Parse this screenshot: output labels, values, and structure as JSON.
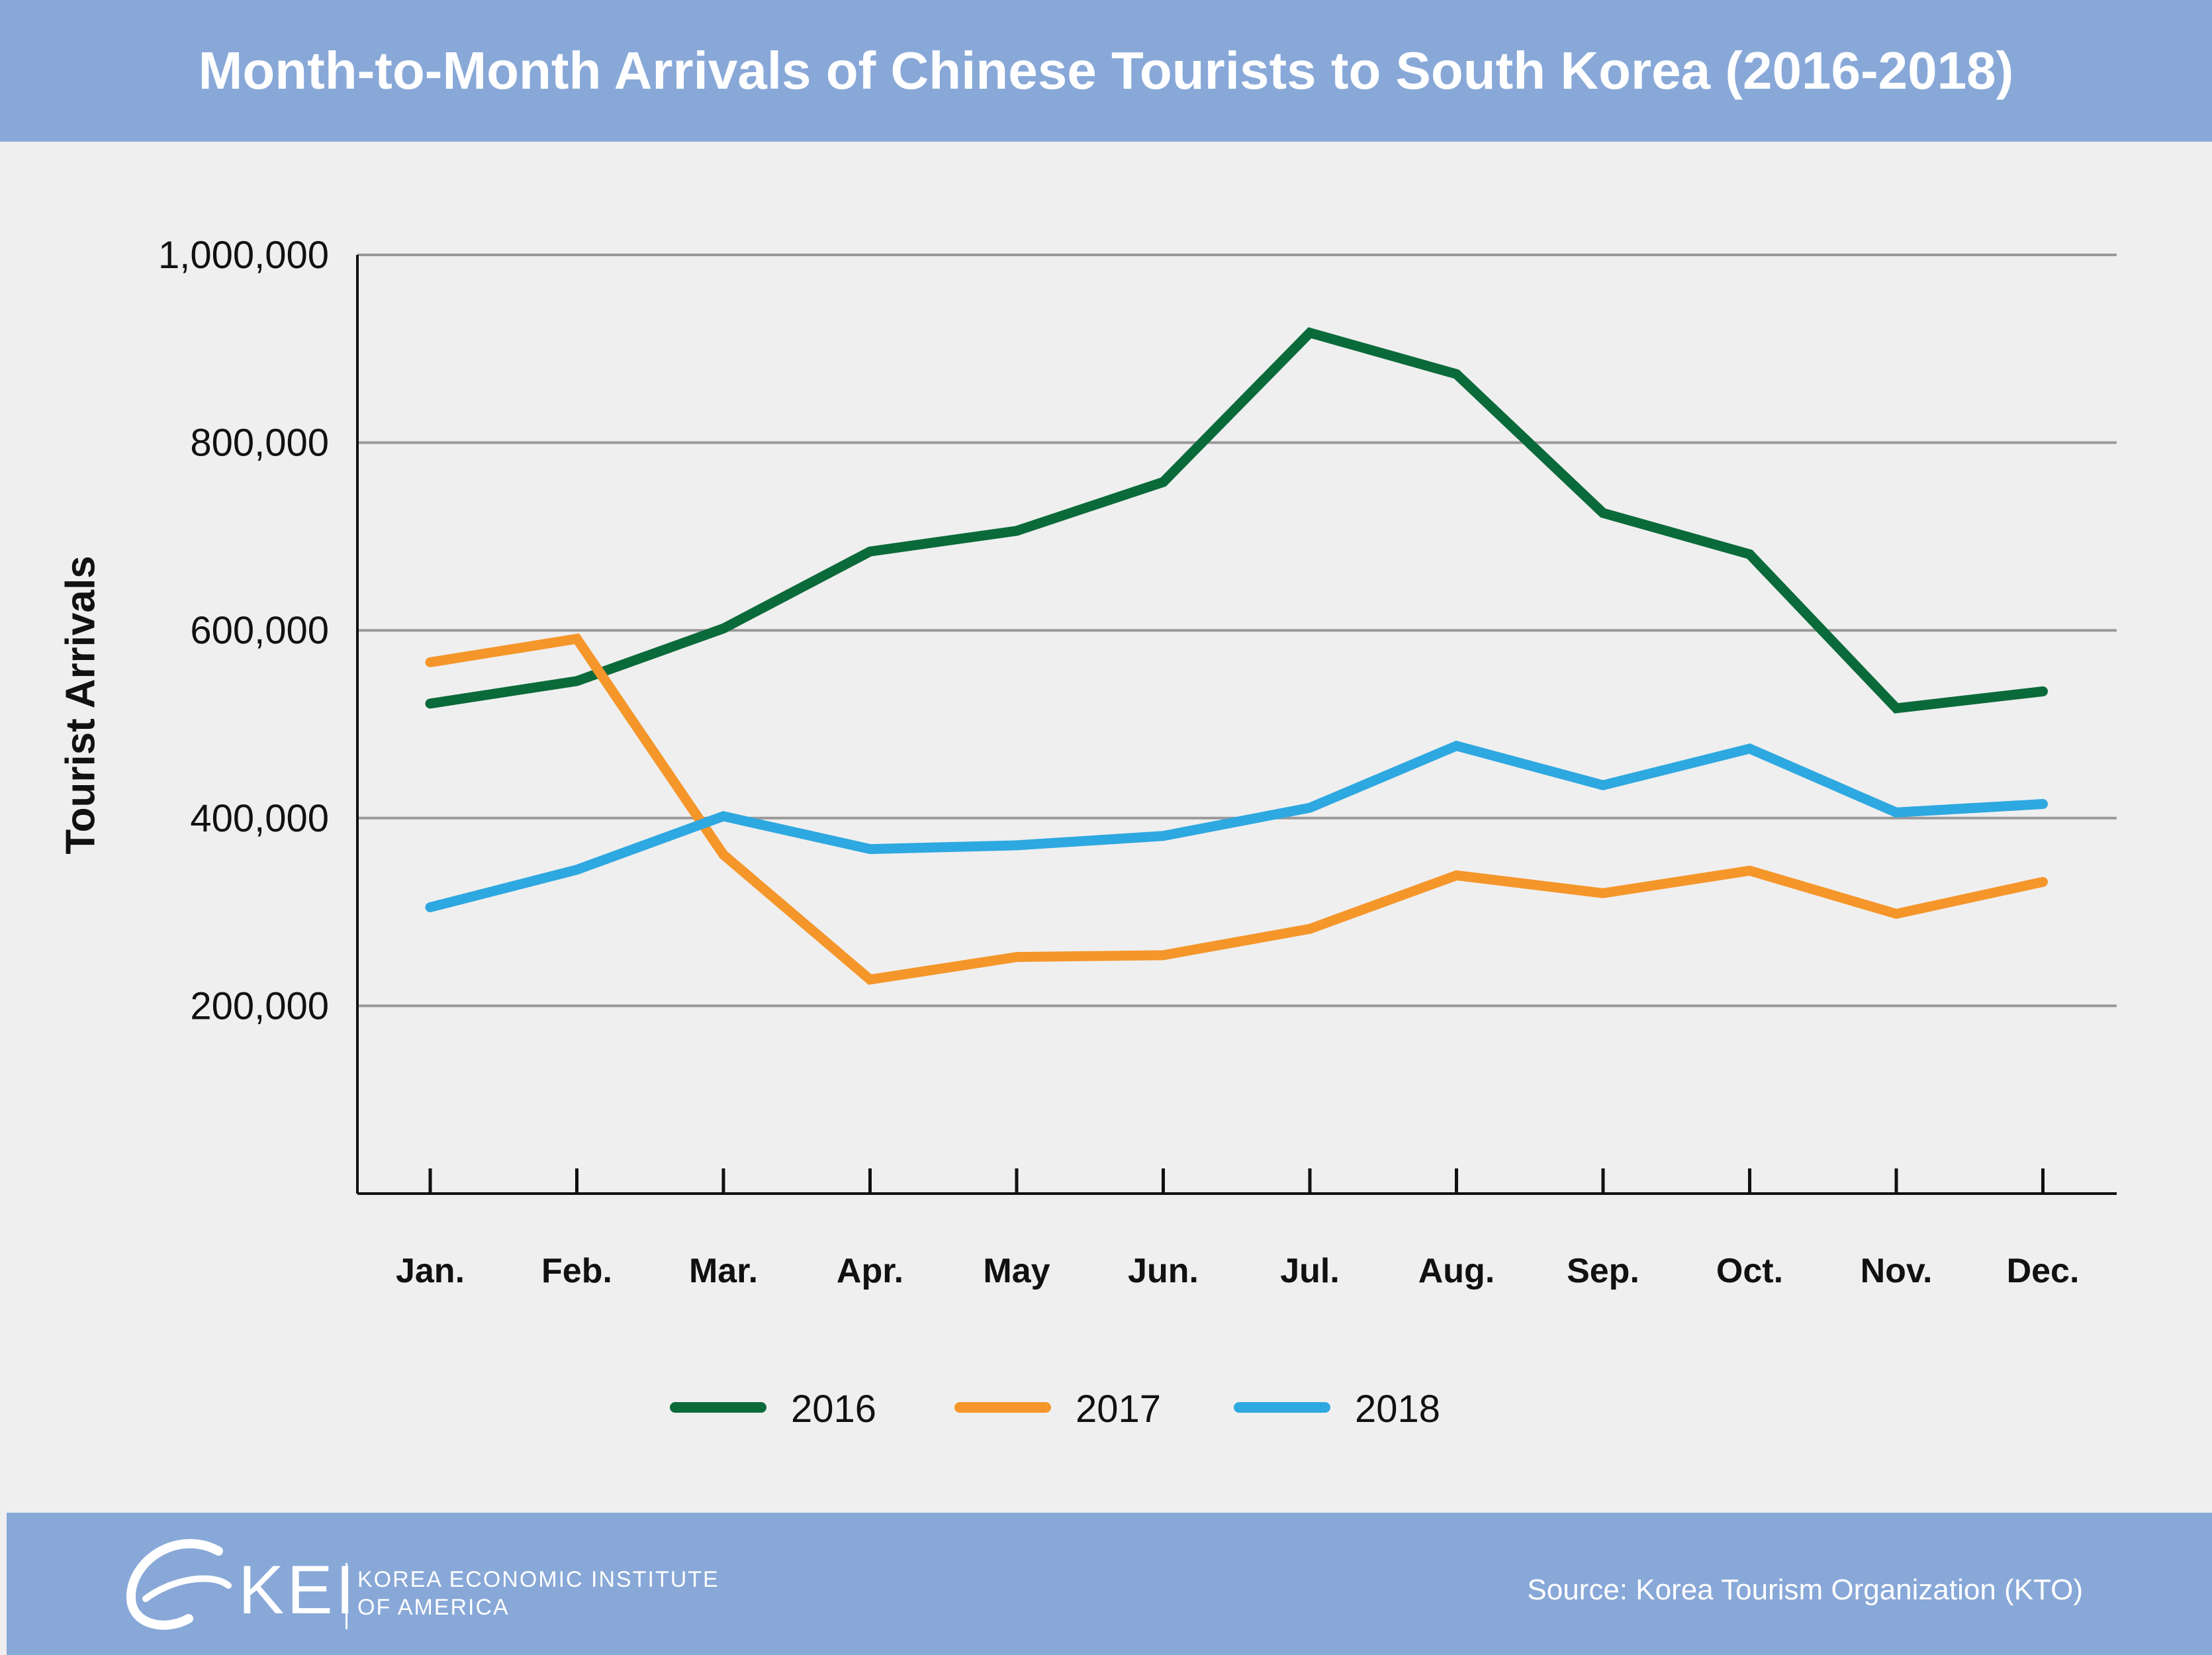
{
  "header": {
    "title": "Month-to-Month Arrivals of Chinese Tourists to South Korea (2016-2018)"
  },
  "footer": {
    "logo_text": "KEI",
    "org_line1": "KOREA ECONOMIC INSTITUTE",
    "org_line2": "OF AMERICA",
    "source": "Source: Korea Tourism Organization (KTO)"
  },
  "colors": {
    "header_bg": "#88a8d8",
    "background": "#efefef",
    "series_2016": "#0b6a3a",
    "series_2017": "#f5962a",
    "series_2018": "#2ea8e0",
    "grid": "#999999"
  },
  "chart_data": {
    "type": "line",
    "title": "Month-to-Month Arrivals of Chinese Tourists to South Korea (2016-2018)",
    "xlabel": "",
    "ylabel": "Tourist Arrivals",
    "categories": [
      "Jan.",
      "Feb.",
      "Mar.",
      "Apr.",
      "May",
      "Jun.",
      "Jul.",
      "Aug.",
      "Sep.",
      "Oct.",
      "Nov.",
      "Dec."
    ],
    "ylim": [
      0,
      1000000
    ],
    "yticks": [
      200000,
      400000,
      600000,
      800000,
      1000000
    ],
    "ytick_labels": [
      "200,000",
      "400,000",
      "600,000",
      "800,000",
      "1,000,000"
    ],
    "grid": true,
    "legend_position": "bottom",
    "series": [
      {
        "name": "2016",
        "color": "#0b6a3a",
        "values": [
          522000,
          546000,
          602000,
          684000,
          706000,
          758000,
          917000,
          873000,
          725000,
          681000,
          517000,
          535000
        ]
      },
      {
        "name": "2017",
        "color": "#f5962a",
        "values": [
          566000,
          591000,
          361000,
          228000,
          252000,
          254000,
          282000,
          339000,
          320000,
          344000,
          298000,
          332000
        ]
      },
      {
        "name": "2018",
        "color": "#2ea8e0",
        "values": [
          305000,
          345000,
          402000,
          367000,
          371000,
          381000,
          411000,
          477000,
          435000,
          474000,
          406000,
          415000
        ]
      }
    ]
  }
}
